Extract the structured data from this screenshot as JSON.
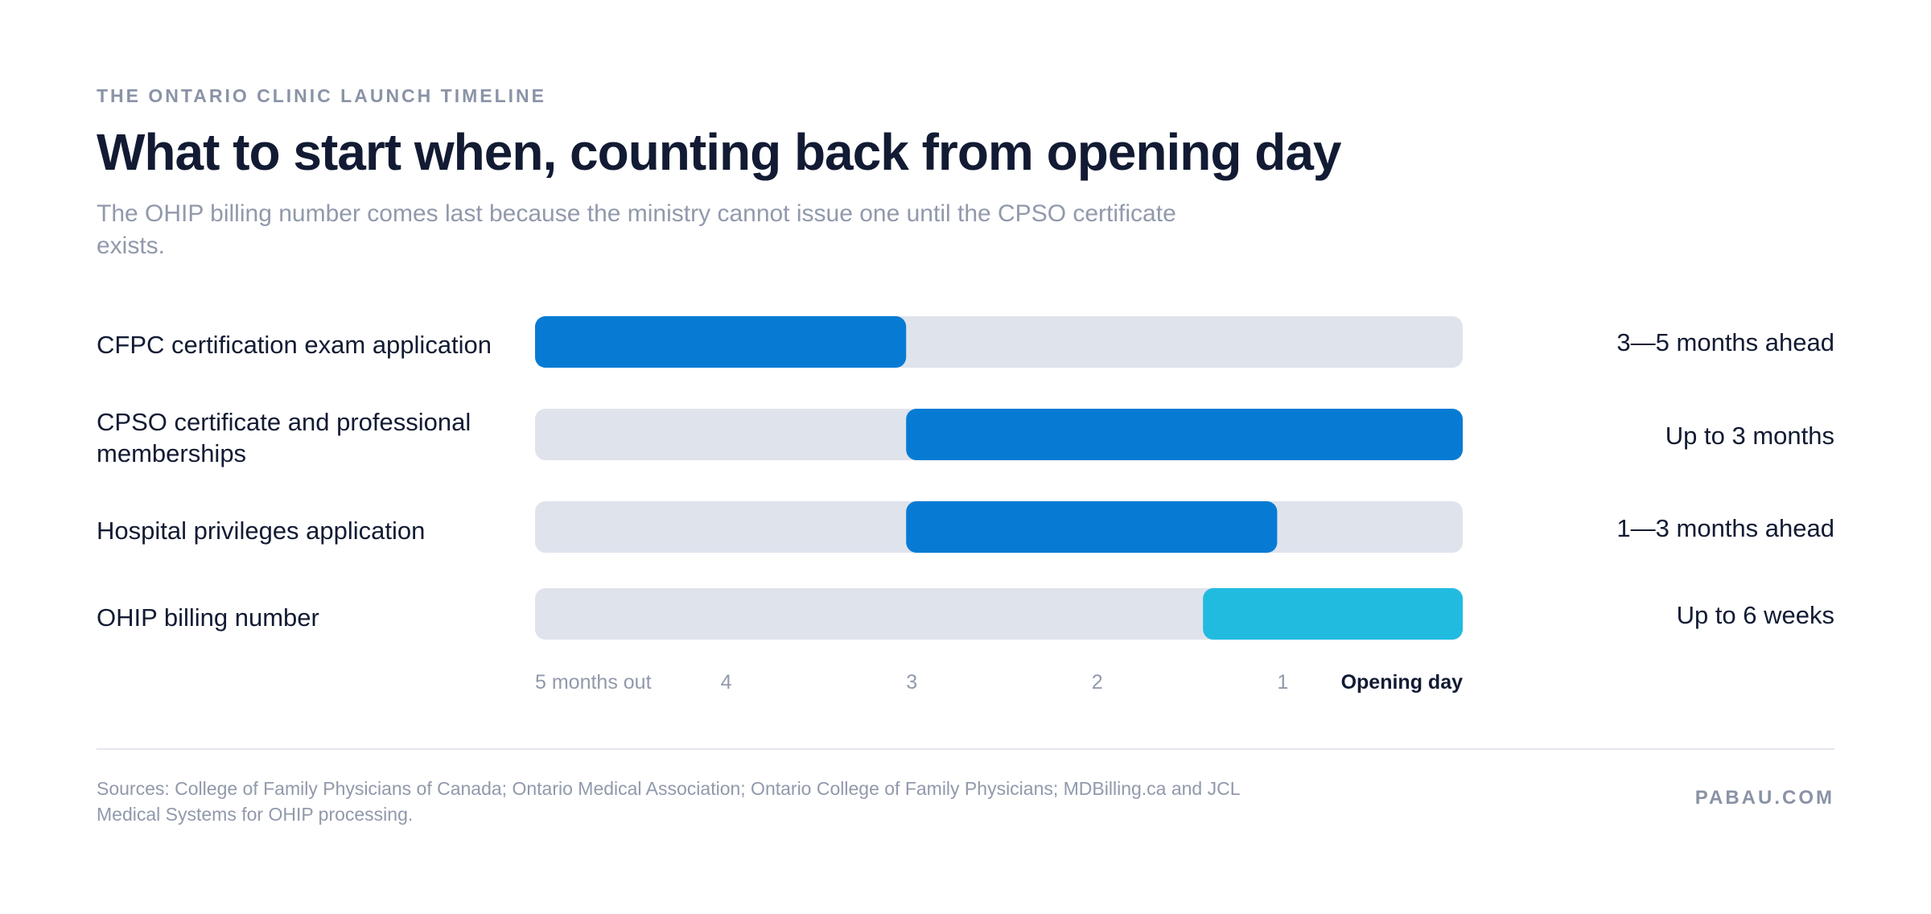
{
  "header": {
    "eyebrow": "THE ONTARIO CLINIC LAUNCH TIMELINE",
    "title": "What to start when, counting back from opening day",
    "subtitle": "The OHIP billing number comes last because the ministry cannot issue one until the CPSO certificate exists."
  },
  "chart_data": {
    "type": "bar",
    "subtype": "range-timeline",
    "x_axis_units": "months before opening day",
    "xlim": [
      5,
      0
    ],
    "ticks": [
      {
        "value": 5,
        "label": "5 months out",
        "emphasis": false
      },
      {
        "value": 4,
        "label": "4",
        "emphasis": false
      },
      {
        "value": 3,
        "label": "3",
        "emphasis": false
      },
      {
        "value": 2,
        "label": "2",
        "emphasis": false
      },
      {
        "value": 1,
        "label": "1",
        "emphasis": false
      },
      {
        "value": 0,
        "label": "Opening day",
        "emphasis": true
      }
    ],
    "track_color": "#dfe3ec",
    "rows": [
      {
        "category": "CFPC certification exam application",
        "start": 5,
        "end": 3,
        "value_label": "3—5 months ahead",
        "color": "#077bd4"
      },
      {
        "category": "CPSO certificate and professional memberships",
        "start": 3,
        "end": 0,
        "value_label": "Up to 3 months",
        "color": "#077bd4"
      },
      {
        "category": "Hospital privileges application",
        "start": 3,
        "end": 1,
        "value_label": "1—3 months ahead",
        "color": "#077bd4"
      },
      {
        "category": "OHIP billing number",
        "start": 1.4,
        "end": 0,
        "value_label": "Up to 6 weeks",
        "color": "#22bbe0"
      }
    ]
  },
  "footer": {
    "sources": "Sources: College of Family Physicians of Canada; Ontario Medical Association; Ontario College of Family Physicians; MDBilling.ca and JCL Medical Systems for OHIP processing.",
    "brand": "PABAU.COM"
  }
}
